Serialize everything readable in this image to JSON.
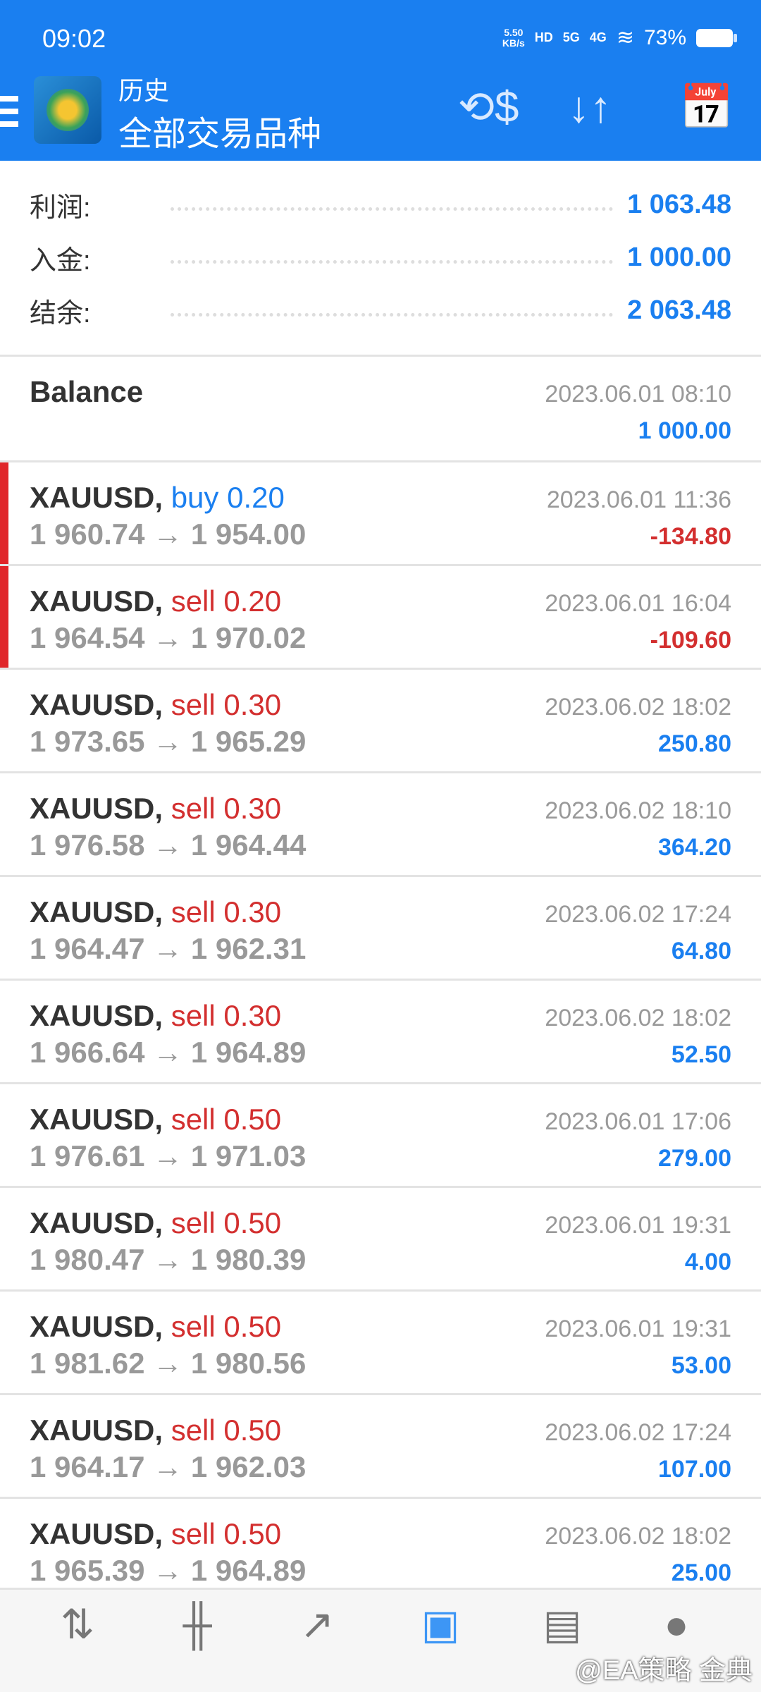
{
  "status": {
    "time": "09:02",
    "net_speed": "5.50",
    "net_unit": "KB/s",
    "hd": "HD",
    "sim1": "5G",
    "sim2": "4G",
    "battery": "73%"
  },
  "header": {
    "title": "历史",
    "subtitle": "全部交易品种",
    "icons": [
      "menu-icon",
      "mt4-logo",
      "dollar-exchange-icon",
      "sort-icon",
      "calendar-icon"
    ]
  },
  "summary": [
    {
      "label": "利润:",
      "value": "1 063.48"
    },
    {
      "label": "入金:",
      "value": "1 000.00"
    },
    {
      "label": "结余:",
      "value": "2 063.48"
    }
  ],
  "balance": {
    "label": "Balance",
    "time": "2023.06.01 08:10",
    "value": "1 000.00"
  },
  "colors": {
    "accent": "#1a7ff0",
    "buy": "#1a7ff0",
    "sell": "#d32f2f",
    "loss": "#d32f2f",
    "profit": "#1a7ff0"
  },
  "trades": [
    {
      "symbol": "XAUUSD,",
      "side": "buy 0.20",
      "type": "buy",
      "prices": "1 960.74 → 1 954.00",
      "time": "2023.06.01 11:36",
      "profit": "-134.80",
      "loss": true
    },
    {
      "symbol": "XAUUSD,",
      "side": "sell 0.20",
      "type": "sell",
      "prices": "1 964.54 → 1 970.02",
      "time": "2023.06.01 16:04",
      "profit": "-109.60",
      "loss": true
    },
    {
      "symbol": "XAUUSD,",
      "side": "sell 0.30",
      "type": "sell",
      "prices": "1 973.65 → 1 965.29",
      "time": "2023.06.02 18:02",
      "profit": "250.80",
      "loss": false
    },
    {
      "symbol": "XAUUSD,",
      "side": "sell 0.30",
      "type": "sell",
      "prices": "1 976.58 → 1 964.44",
      "time": "2023.06.02 18:10",
      "profit": "364.20",
      "loss": false
    },
    {
      "symbol": "XAUUSD,",
      "side": "sell 0.30",
      "type": "sell",
      "prices": "1 964.47 → 1 962.31",
      "time": "2023.06.02 17:24",
      "profit": "64.80",
      "loss": false
    },
    {
      "symbol": "XAUUSD,",
      "side": "sell 0.30",
      "type": "sell",
      "prices": "1 966.64 → 1 964.89",
      "time": "2023.06.02 18:02",
      "profit": "52.50",
      "loss": false
    },
    {
      "symbol": "XAUUSD,",
      "side": "sell 0.50",
      "type": "sell",
      "prices": "1 976.61 → 1 971.03",
      "time": "2023.06.01 17:06",
      "profit": "279.00",
      "loss": false
    },
    {
      "symbol": "XAUUSD,",
      "side": "sell 0.50",
      "type": "sell",
      "prices": "1 980.47 → 1 980.39",
      "time": "2023.06.01 19:31",
      "profit": "4.00",
      "loss": false
    },
    {
      "symbol": "XAUUSD,",
      "side": "sell 0.50",
      "type": "sell",
      "prices": "1 981.62 → 1 980.56",
      "time": "2023.06.01 19:31",
      "profit": "53.00",
      "loss": false
    },
    {
      "symbol": "XAUUSD,",
      "side": "sell 0.50",
      "type": "sell",
      "prices": "1 964.17 → 1 962.03",
      "time": "2023.06.02 17:24",
      "profit": "107.00",
      "loss": false
    },
    {
      "symbol": "XAUUSD,",
      "side": "sell 0.50",
      "type": "sell",
      "prices": "1 965.39 → 1 964.89",
      "time": "2023.06.02 18:02",
      "profit": "25.00",
      "loss": false
    }
  ],
  "nav": {
    "items": [
      "quotes-icon",
      "chart-icon",
      "trade-icon",
      "history-icon",
      "news-icon",
      "chat-icon"
    ],
    "active": "history-icon"
  },
  "watermark": "@EA策略 金典"
}
